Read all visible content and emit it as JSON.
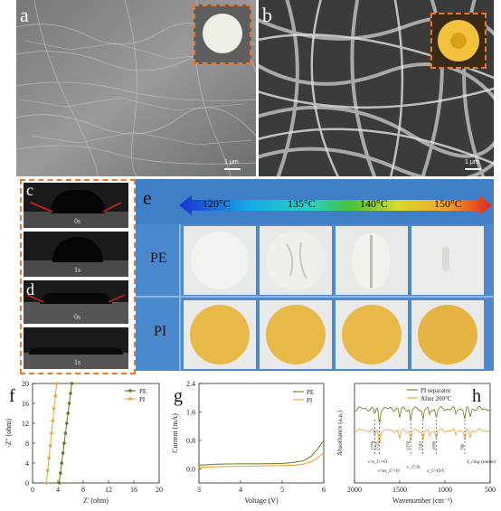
{
  "labels": {
    "a": "a",
    "b": "b",
    "c": "c",
    "d": "d",
    "e": "e",
    "f": "f",
    "g": "g",
    "h": "h"
  },
  "sem": {
    "scale_a": "1 μm",
    "scale_b": "1 μm"
  },
  "contact": {
    "c_t0": "0s",
    "c_t1": "1s",
    "d_t0": "0s",
    "d_t1": "1s"
  },
  "thermal": {
    "temps": [
      "120°C",
      "135°C",
      "140°C",
      "150°C"
    ],
    "rows": [
      "PE",
      "PI"
    ]
  },
  "colors": {
    "accent_orange": "#e9782a",
    "pe_green": "#5f7d1e",
    "pi_orange": "#f2a13b",
    "panel_blue": "#3f7fc6",
    "pi_yellow": "#e8b948"
  },
  "chart_data": [
    {
      "type": "scatter",
      "panel": "f",
      "xlabel": "Z' (ohm)",
      "ylabel": "-Z'' (ohm)",
      "xlim": [
        0,
        20
      ],
      "ylim": [
        0,
        20
      ],
      "xticks": [
        "0",
        "4",
        "8",
        "12",
        "16",
        "20"
      ],
      "yticks": [
        "0",
        "4",
        "8",
        "12",
        "16",
        "20"
      ],
      "legend_position": "top-right",
      "series": [
        {
          "name": "PE",
          "color": "#5f7d1e",
          "x": [
            4.2,
            4.4,
            4.6,
            4.8,
            5.0,
            5.2,
            5.4,
            5.6,
            5.8,
            6.0,
            6.2
          ],
          "y": [
            0,
            2,
            4,
            6,
            8,
            10,
            12,
            14,
            16,
            18,
            20
          ]
        },
        {
          "name": "PI",
          "color": "#f2a13b",
          "x": [
            2.2,
            2.4,
            2.6,
            2.8,
            3.0,
            3.2,
            3.4,
            3.6,
            3.8
          ],
          "y": [
            0,
            2.5,
            5,
            7.5,
            10,
            12.5,
            15,
            17.5,
            20
          ]
        }
      ]
    },
    {
      "type": "line",
      "panel": "g",
      "xlabel": "Voltage (V)",
      "ylabel": "Current (mA)",
      "xlim": [
        3,
        6
      ],
      "ylim": [
        -0.4,
        2.4
      ],
      "xticks": [
        "3",
        "4",
        "5",
        "6"
      ],
      "yticks": [
        "0.0",
        "0.8",
        "1.6",
        "2.4"
      ],
      "legend_position": "top-right",
      "series": [
        {
          "name": "PE",
          "color": "#6b8a2a",
          "x": [
            3,
            3.5,
            4,
            4.5,
            5,
            5.3,
            5.5,
            5.7,
            5.85,
            6
          ],
          "y": [
            0.1,
            0.13,
            0.14,
            0.14,
            0.15,
            0.18,
            0.22,
            0.35,
            0.55,
            0.8
          ]
        },
        {
          "name": "PI",
          "color": "#f2a13b",
          "x": [
            3,
            3.5,
            4,
            4.5,
            5,
            5.3,
            5.5,
            5.7,
            5.85,
            6
          ],
          "y": [
            0.04,
            0.06,
            0.07,
            0.08,
            0.09,
            0.1,
            0.13,
            0.2,
            0.3,
            0.45
          ]
        }
      ]
    },
    {
      "type": "line",
      "panel": "h",
      "xlabel": "Wavenumber (cm⁻¹)",
      "ylabel": "Absorbance (a.u.)",
      "xlim": [
        2000,
        500
      ],
      "xticks": [
        "2000",
        "1500",
        "1000",
        "500"
      ],
      "legend_position": "top-right",
      "series": [
        {
          "name": "PI separator",
          "color": "#6b8a2a"
        },
        {
          "name": "After 200°C",
          "color": "#f2a13b"
        }
      ],
      "peaks": [
        "1776",
        "1725",
        "1378",
        "1243",
        "1096",
        "780"
      ],
      "annotations": [
        "ν^s_C=O",
        "ν^as_C=O",
        "ν_C-N",
        "ν_C-O-C",
        "δ_ring (imide)"
      ]
    }
  ]
}
